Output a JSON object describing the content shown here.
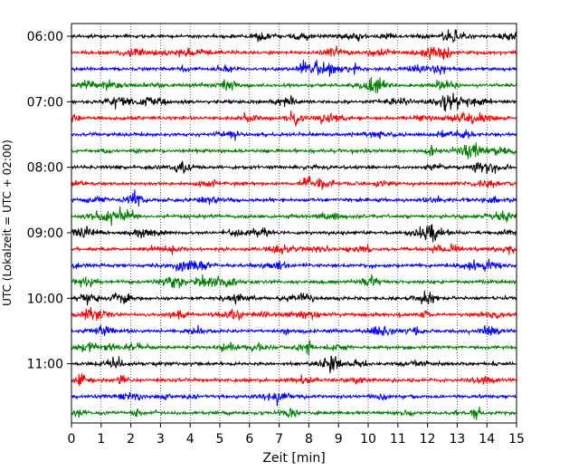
{
  "chart_data": {
    "type": "line",
    "title": "",
    "xlabel": "Zeit  [min]",
    "ylabel": "UTC (Lokalzeit = UTC + 02:00)",
    "xlim": [
      0,
      15
    ],
    "x_ticks": [
      "0",
      "1",
      "2",
      "3",
      "4",
      "5",
      "6",
      "7",
      "8",
      "9",
      "10",
      "11",
      "12",
      "13",
      "14",
      "15"
    ],
    "y_ticks": [
      {
        "label": "06:00",
        "trace": 0
      },
      {
        "label": "07:00",
        "trace": 4
      },
      {
        "label": "08:00",
        "trace": 8
      },
      {
        "label": "09:00",
        "trace": 12
      },
      {
        "label": "10:00",
        "trace": 16
      },
      {
        "label": "11:00",
        "trace": 20
      }
    ],
    "grid": "vertical dotted lines at each minute",
    "trace_interval_minutes": 15,
    "trace_count": 24,
    "color_cycle": [
      "#000000",
      "#ff0000",
      "#0000ff",
      "#007f00"
    ],
    "series": [
      {
        "start": "06:00",
        "color": "#000000"
      },
      {
        "start": "06:15",
        "color": "#ff0000"
      },
      {
        "start": "06:30",
        "color": "#0000ff"
      },
      {
        "start": "06:45",
        "color": "#007f00"
      },
      {
        "start": "07:00",
        "color": "#000000"
      },
      {
        "start": "07:15",
        "color": "#ff0000"
      },
      {
        "start": "07:30",
        "color": "#0000ff"
      },
      {
        "start": "07:45",
        "color": "#007f00"
      },
      {
        "start": "08:00",
        "color": "#000000"
      },
      {
        "start": "08:15",
        "color": "#ff0000"
      },
      {
        "start": "08:30",
        "color": "#0000ff"
      },
      {
        "start": "08:45",
        "color": "#007f00"
      },
      {
        "start": "09:00",
        "color": "#000000"
      },
      {
        "start": "09:15",
        "color": "#ff0000"
      },
      {
        "start": "09:30",
        "color": "#0000ff"
      },
      {
        "start": "09:45",
        "color": "#007f00"
      },
      {
        "start": "10:00",
        "color": "#000000"
      },
      {
        "start": "10:15",
        "color": "#ff0000"
      },
      {
        "start": "10:30",
        "color": "#0000ff"
      },
      {
        "start": "10:45",
        "color": "#007f00"
      },
      {
        "start": "11:00",
        "color": "#000000"
      },
      {
        "start": "11:15",
        "color": "#ff0000"
      },
      {
        "start": "11:30",
        "color": "#0000ff"
      },
      {
        "start": "11:45",
        "color": "#007f00"
      }
    ]
  }
}
